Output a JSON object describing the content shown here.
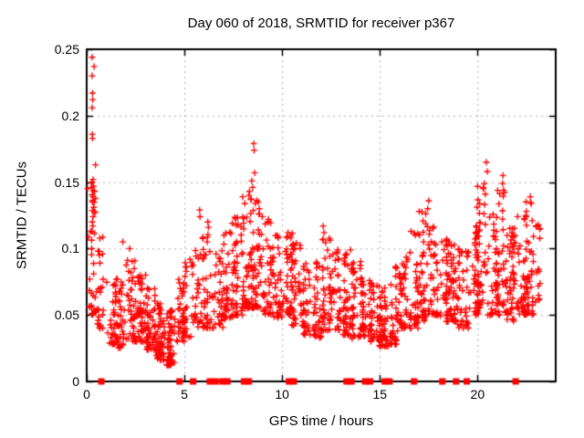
{
  "chart_data": {
    "type": "scatter",
    "title": "Day 060 of 2018, SRMTID for receiver p367",
    "xlabel": "GPS time / hours",
    "ylabel": "SRMTID / TECUs",
    "xlim": [
      0,
      24
    ],
    "ylim": [
      0,
      0.25
    ],
    "xticks": {
      "values": [
        0,
        5,
        10,
        15,
        20
      ],
      "labels": [
        "0",
        "5",
        "10",
        "15",
        "20"
      ]
    },
    "yticks": {
      "values": [
        0,
        0.05,
        0.1,
        0.15,
        0.2,
        0.25
      ],
      "labels": [
        "0",
        "0.05",
        "0.1",
        "0.15",
        "0.2",
        "0.25"
      ]
    },
    "grid": true,
    "legend": "none",
    "colors": {
      "points": "#ff0000",
      "grid": "#b0b0b0",
      "border": "#000000",
      "text": "#000000",
      "background": "#ffffff"
    },
    "marker": {
      "shape": "plus",
      "size": 7
    },
    "series": [
      {
        "name": "srmtid-points",
        "marker": "plus",
        "seed": 42,
        "bins_format": [
          "t_start_hours",
          "t_end_hours",
          "y_min_TECUs",
          "y_max_TECUs",
          "n_points"
        ],
        "bins": [
          [
            0.0,
            0.5,
            0.05,
            0.155,
            34
          ],
          [
            0.5,
            1.0,
            0.04,
            0.11,
            26
          ],
          [
            1.0,
            1.5,
            0.028,
            0.075,
            30
          ],
          [
            1.5,
            2.0,
            0.025,
            0.08,
            38
          ],
          [
            2.0,
            2.5,
            0.03,
            0.092,
            44
          ],
          [
            2.5,
            3.0,
            0.03,
            0.082,
            48
          ],
          [
            3.0,
            3.5,
            0.024,
            0.072,
            50
          ],
          [
            3.5,
            4.0,
            0.016,
            0.06,
            54
          ],
          [
            4.0,
            4.5,
            0.012,
            0.055,
            56
          ],
          [
            4.5,
            5.0,
            0.03,
            0.08,
            34
          ],
          [
            5.0,
            5.5,
            0.033,
            0.092,
            32
          ],
          [
            5.5,
            6.0,
            0.04,
            0.1,
            30
          ],
          [
            6.0,
            6.5,
            0.04,
            0.115,
            34
          ],
          [
            6.5,
            7.0,
            0.04,
            0.1,
            34
          ],
          [
            7.0,
            7.5,
            0.048,
            0.115,
            38
          ],
          [
            7.5,
            8.0,
            0.05,
            0.125,
            42
          ],
          [
            8.0,
            8.5,
            0.055,
            0.142,
            48
          ],
          [
            8.5,
            9.0,
            0.055,
            0.138,
            44
          ],
          [
            9.0,
            9.5,
            0.05,
            0.122,
            40
          ],
          [
            9.5,
            10.0,
            0.048,
            0.11,
            36
          ],
          [
            10.0,
            10.5,
            0.05,
            0.112,
            40
          ],
          [
            10.5,
            11.0,
            0.042,
            0.105,
            40
          ],
          [
            11.0,
            11.5,
            0.035,
            0.09,
            34
          ],
          [
            11.5,
            12.0,
            0.032,
            0.09,
            34
          ],
          [
            12.0,
            12.5,
            0.038,
            0.108,
            40
          ],
          [
            12.5,
            13.0,
            0.038,
            0.1,
            40
          ],
          [
            13.0,
            13.5,
            0.035,
            0.098,
            40
          ],
          [
            13.5,
            14.0,
            0.032,
            0.094,
            40
          ],
          [
            14.0,
            14.5,
            0.034,
            0.08,
            40
          ],
          [
            14.5,
            15.0,
            0.03,
            0.075,
            44
          ],
          [
            15.0,
            15.5,
            0.026,
            0.072,
            44
          ],
          [
            15.5,
            16.0,
            0.028,
            0.088,
            40
          ],
          [
            16.0,
            16.5,
            0.04,
            0.094,
            40
          ],
          [
            16.5,
            17.0,
            0.04,
            0.112,
            40
          ],
          [
            17.0,
            17.5,
            0.045,
            0.13,
            40
          ],
          [
            17.5,
            18.0,
            0.05,
            0.118,
            40
          ],
          [
            18.0,
            18.5,
            0.045,
            0.108,
            40
          ],
          [
            18.5,
            19.0,
            0.045,
            0.103,
            40
          ],
          [
            19.0,
            19.5,
            0.04,
            0.1,
            40
          ],
          [
            19.5,
            20.0,
            0.05,
            0.118,
            40
          ],
          [
            20.0,
            20.5,
            0.055,
            0.148,
            44
          ],
          [
            20.5,
            21.0,
            0.05,
            0.128,
            44
          ],
          [
            21.0,
            21.5,
            0.05,
            0.145,
            44
          ],
          [
            21.5,
            22.0,
            0.045,
            0.118,
            44
          ],
          [
            22.0,
            22.5,
            0.05,
            0.128,
            40
          ],
          [
            22.5,
            23.0,
            0.05,
            0.138,
            40
          ],
          [
            23.0,
            23.2,
            0.06,
            0.118,
            14
          ]
        ],
        "peaks": [
          [
            0.28,
            0.244
          ],
          [
            0.38,
            0.237
          ],
          [
            0.28,
            0.23
          ],
          [
            0.3,
            0.217
          ],
          [
            0.31,
            0.212
          ],
          [
            0.28,
            0.206
          ],
          [
            0.29,
            0.186
          ],
          [
            0.3,
            0.183
          ],
          [
            0.45,
            0.163
          ],
          [
            0.33,
            0.152
          ],
          [
            0.28,
            0.15
          ],
          [
            0.35,
            0.147
          ],
          [
            0.4,
            0.143
          ],
          [
            0.32,
            0.139
          ],
          [
            0.3,
            0.135
          ],
          [
            0.36,
            0.131
          ],
          [
            0.42,
            0.127
          ],
          [
            0.33,
            0.124
          ],
          [
            0.29,
            0.12
          ],
          [
            0.31,
            0.117
          ],
          [
            0.27,
            0.113
          ],
          [
            1.85,
            0.105
          ],
          [
            2.2,
            0.1
          ],
          [
            5.78,
            0.129
          ],
          [
            5.8,
            0.124
          ],
          [
            6.2,
            0.12
          ],
          [
            6.23,
            0.116
          ],
          [
            7.45,
            0.119
          ],
          [
            7.75,
            0.118
          ],
          [
            8.55,
            0.179
          ],
          [
            8.57,
            0.174
          ],
          [
            8.6,
            0.157
          ],
          [
            8.45,
            0.151
          ],
          [
            8.5,
            0.146
          ],
          [
            8.33,
            0.143
          ],
          [
            8.3,
            0.14
          ],
          [
            8.4,
            0.137
          ],
          [
            8.62,
            0.134
          ],
          [
            9.3,
            0.122
          ],
          [
            10.3,
            0.112
          ],
          [
            12.1,
            0.117
          ],
          [
            12.15,
            0.112
          ],
          [
            12.08,
            0.107
          ],
          [
            13.5,
            0.099
          ],
          [
            16.6,
            0.113
          ],
          [
            17.5,
            0.136
          ],
          [
            17.45,
            0.13
          ],
          [
            18.4,
            0.106
          ],
          [
            20.45,
            0.165
          ],
          [
            20.5,
            0.158
          ],
          [
            20.35,
            0.149
          ],
          [
            20.3,
            0.145
          ],
          [
            20.4,
            0.141
          ],
          [
            21.3,
            0.155
          ],
          [
            21.28,
            0.149
          ],
          [
            21.33,
            0.144
          ],
          [
            22.7,
            0.139
          ],
          [
            22.75,
            0.134
          ],
          [
            22.5,
            0.128
          ],
          [
            22.8,
            0.121
          ],
          [
            23.0,
            0.117
          ]
        ]
      },
      {
        "name": "zero-flag-points",
        "marker": "filled-square",
        "y": 0,
        "x": [
          0.75,
          4.75,
          5.45,
          6.3,
          6.6,
          6.95,
          7.2,
          8.05,
          8.3,
          10.35,
          10.6,
          13.3,
          13.55,
          14.25,
          14.5,
          15.25,
          15.5,
          16.75,
          18.2,
          18.9,
          19.45,
          21.95
        ]
      }
    ]
  }
}
